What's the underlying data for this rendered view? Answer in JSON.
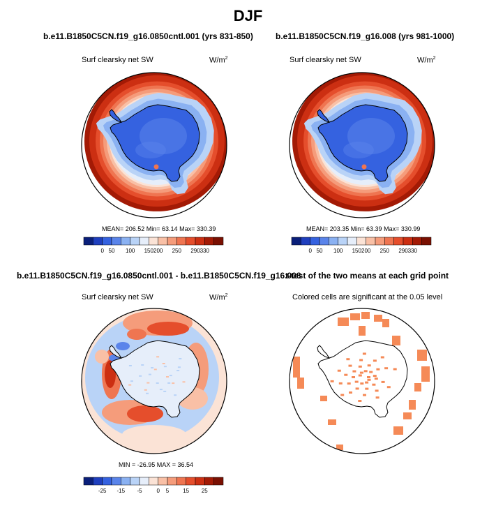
{
  "title": "DJF",
  "panels": {
    "top_left": {
      "title": "b.e11.B1850C5CN.f19_g16.0850cntl.001 (yrs 831-850)",
      "variable": "Surf clearsky net SW",
      "units": "W/m",
      "units_exp": "2",
      "stats": "MEAN= 206.52  Min=  63.14  Max= 330.39"
    },
    "top_right": {
      "title": "b.e11.B1850C5CN.f19_g16.008 (yrs 981-1000)",
      "variable": "Surf clearsky net SW",
      "units": "W/m",
      "units_exp": "2",
      "stats": "MEAN= 203.35  Min=  63.39  Max= 330.99"
    },
    "bottom_left": {
      "title": "b.e11.B1850C5CN.f19_g16.0850cntl.001 - b.e11.B1850C5CN.f19_g16.008",
      "variable": "Surf clearsky net SW",
      "units": "W/m",
      "units_exp": "2",
      "stats": "MIN = -26.95  MAX =  36.54"
    },
    "bottom_right": {
      "title": "t-test of the two means at each grid point",
      "variable": "Colored cells are significant at the 0.05 level"
    }
  },
  "chart_data": [
    {
      "type": "heatmap",
      "projection": "south polar stereographic",
      "title": "b.e11.B1850C5CN.f19_g16.0850cntl.001 (yrs 831-850)",
      "variable": "Surf clearsky net SW",
      "units": "W/m2",
      "mean": 206.52,
      "min": 63.14,
      "max": 330.39,
      "colorbar": {
        "ticks": [
          "0",
          "50",
          "100",
          "150",
          "200",
          "250",
          "290",
          "330"
        ],
        "colors": [
          "#0a1f7a",
          "#1f3fbe",
          "#3562e0",
          "#5a84ea",
          "#8ab1f2",
          "#b9d3f7",
          "#e6eefa",
          "#fbe3d6",
          "#f9c0a6",
          "#f59c7b",
          "#ef7551",
          "#e54e2c",
          "#cc2f12",
          "#a31a05",
          "#7a1002"
        ]
      }
    },
    {
      "type": "heatmap",
      "projection": "south polar stereographic",
      "title": "b.e11.B1850C5CN.f19_g16.008 (yrs 981-1000)",
      "variable": "Surf clearsky net SW",
      "units": "W/m2",
      "mean": 203.35,
      "min": 63.39,
      "max": 330.99,
      "colorbar": {
        "ticks": [
          "0",
          "50",
          "100",
          "150",
          "200",
          "250",
          "290",
          "330"
        ],
        "colors": [
          "#0a1f7a",
          "#1f3fbe",
          "#3562e0",
          "#5a84ea",
          "#8ab1f2",
          "#b9d3f7",
          "#e6eefa",
          "#fbe3d6",
          "#f9c0a6",
          "#f59c7b",
          "#ef7551",
          "#e54e2c",
          "#cc2f12",
          "#a31a05",
          "#7a1002"
        ]
      }
    },
    {
      "type": "heatmap",
      "projection": "south polar stereographic",
      "title": "b.e11.B1850C5CN.f19_g16.0850cntl.001 - b.e11.B1850C5CN.f19_g16.008",
      "variable": "Surf clearsky net SW",
      "units": "W/m2",
      "min": -26.95,
      "max": 36.54,
      "colorbar": {
        "ticks": [
          "-25",
          "-15",
          "-5",
          "0",
          "5",
          "15",
          "25"
        ],
        "colors": [
          "#0a1f7a",
          "#1f3fbe",
          "#3562e0",
          "#5a84ea",
          "#8ab1f2",
          "#b9d3f7",
          "#e6eefa",
          "#fbe3d6",
          "#f9c0a6",
          "#f59c7b",
          "#ef7551",
          "#e54e2c",
          "#cc2f12",
          "#a31a05",
          "#7a1002"
        ]
      }
    },
    {
      "type": "heatmap",
      "projection": "south polar stereographic",
      "title": "t-test of the two means at each grid point",
      "variable": "Colored cells are significant at the 0.05 level",
      "significance_color": "#f58a57"
    }
  ]
}
